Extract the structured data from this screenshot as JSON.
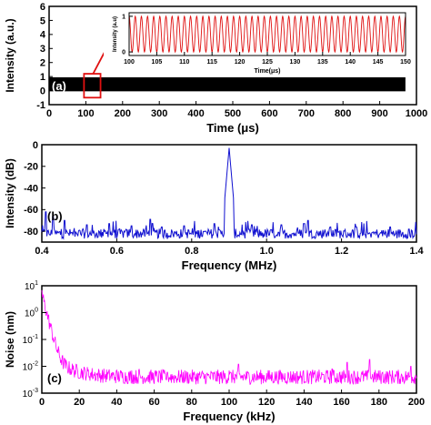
{
  "colors": {
    "panel_a": "#000000",
    "inset": "#e01010",
    "panel_b": "#1010d0",
    "panel_c": "#ff00ff",
    "marker": "#e01010"
  },
  "chart_data": [
    {
      "id": "a",
      "type": "line",
      "panel_label": "(a)",
      "xlabel": "Time (μs)",
      "ylabel": "Intensity (a.u.)",
      "xlim": [
        0,
        1000
      ],
      "ylim": [
        -1,
        6
      ],
      "x_ticks": [
        "0",
        "100",
        "200",
        "300",
        "400",
        "500",
        "600",
        "700",
        "800",
        "900",
        "1000"
      ],
      "y_ticks": [
        "-1",
        "0",
        "1",
        "2",
        "3",
        "4",
        "5",
        "6"
      ],
      "series": [
        {
          "description": "dense oscillation filling the band",
          "band": [
            -0.05,
            0.95
          ],
          "x": [
            0,
            970
          ]
        }
      ],
      "highlight_box": {
        "x": [
          95,
          140
        ],
        "y": [
          -0.5,
          1.2
        ]
      },
      "inset": {
        "type": "line",
        "xlabel": "Time(μs)",
        "ylabel": "Intensity (a.u)",
        "xlim": [
          100,
          150
        ],
        "ylim": [
          -0.1,
          1.1
        ],
        "x_ticks": [
          "100",
          "105",
          "110",
          "115",
          "120",
          "125",
          "130",
          "135",
          "140",
          "145",
          "150"
        ],
        "y_ticks": [
          "0",
          "1"
        ],
        "oscillation": {
          "frequency_MHz": 0.9,
          "min": 0,
          "max": 1
        }
      }
    },
    {
      "id": "b",
      "type": "line",
      "panel_label": "(b)",
      "xlabel": "Frequency (MHz)",
      "ylabel": "Intensity (dB)",
      "xlim": [
        0.4,
        1.4
      ],
      "ylim": [
        -90,
        0
      ],
      "x_ticks": [
        "0.4",
        "0.6",
        "0.8",
        "1.0",
        "1.2",
        "1.4"
      ],
      "y_ticks": [
        "-80",
        "-60",
        "-40",
        "-20",
        "0"
      ],
      "noise_floor_dB": -84,
      "peak": {
        "x": 0.9,
        "y": -3
      },
      "spikes": [
        [
          0.41,
          -62
        ],
        [
          0.43,
          -66
        ],
        [
          0.46,
          -70
        ],
        [
          0.52,
          -74
        ],
        [
          0.58,
          -73
        ],
        [
          0.64,
          -75
        ],
        [
          0.69,
          -69
        ],
        [
          0.72,
          -76
        ],
        [
          0.78,
          -75
        ],
        [
          0.86,
          -73
        ],
        [
          0.89,
          -66
        ],
        [
          0.91,
          -65
        ],
        [
          0.96,
          -74
        ],
        [
          1.04,
          -74
        ],
        [
          1.1,
          -73
        ],
        [
          1.11,
          -70
        ],
        [
          1.17,
          -76
        ],
        [
          1.24,
          -76
        ],
        [
          1.33,
          -76
        ],
        [
          1.38,
          -78
        ]
      ]
    },
    {
      "id": "c",
      "type": "line",
      "panel_label": "(c)",
      "xlabel": "Frequency (kHz)",
      "ylabel": "Noise (nm)",
      "xscale": "linear",
      "yscale": "log",
      "xlim": [
        0,
        200
      ],
      "ylim": [
        0.001,
        10
      ],
      "x_ticks": [
        "0",
        "20",
        "40",
        "60",
        "80",
        "100",
        "120",
        "140",
        "160",
        "180",
        "200"
      ],
      "y_ticks": [
        "10-3",
        "10-2",
        "10-1",
        "100",
        "101"
      ],
      "decay": {
        "start_value": 5,
        "floor_value": 0.004
      },
      "spikes": [
        [
          48,
          0.007
        ],
        [
          52,
          0.008
        ],
        [
          67,
          0.006
        ],
        [
          100,
          0.007
        ],
        [
          105,
          0.012
        ],
        [
          155,
          0.008
        ],
        [
          163,
          0.014
        ],
        [
          175,
          0.018
        ],
        [
          182,
          0.006
        ],
        [
          197,
          0.01
        ]
      ]
    }
  ]
}
